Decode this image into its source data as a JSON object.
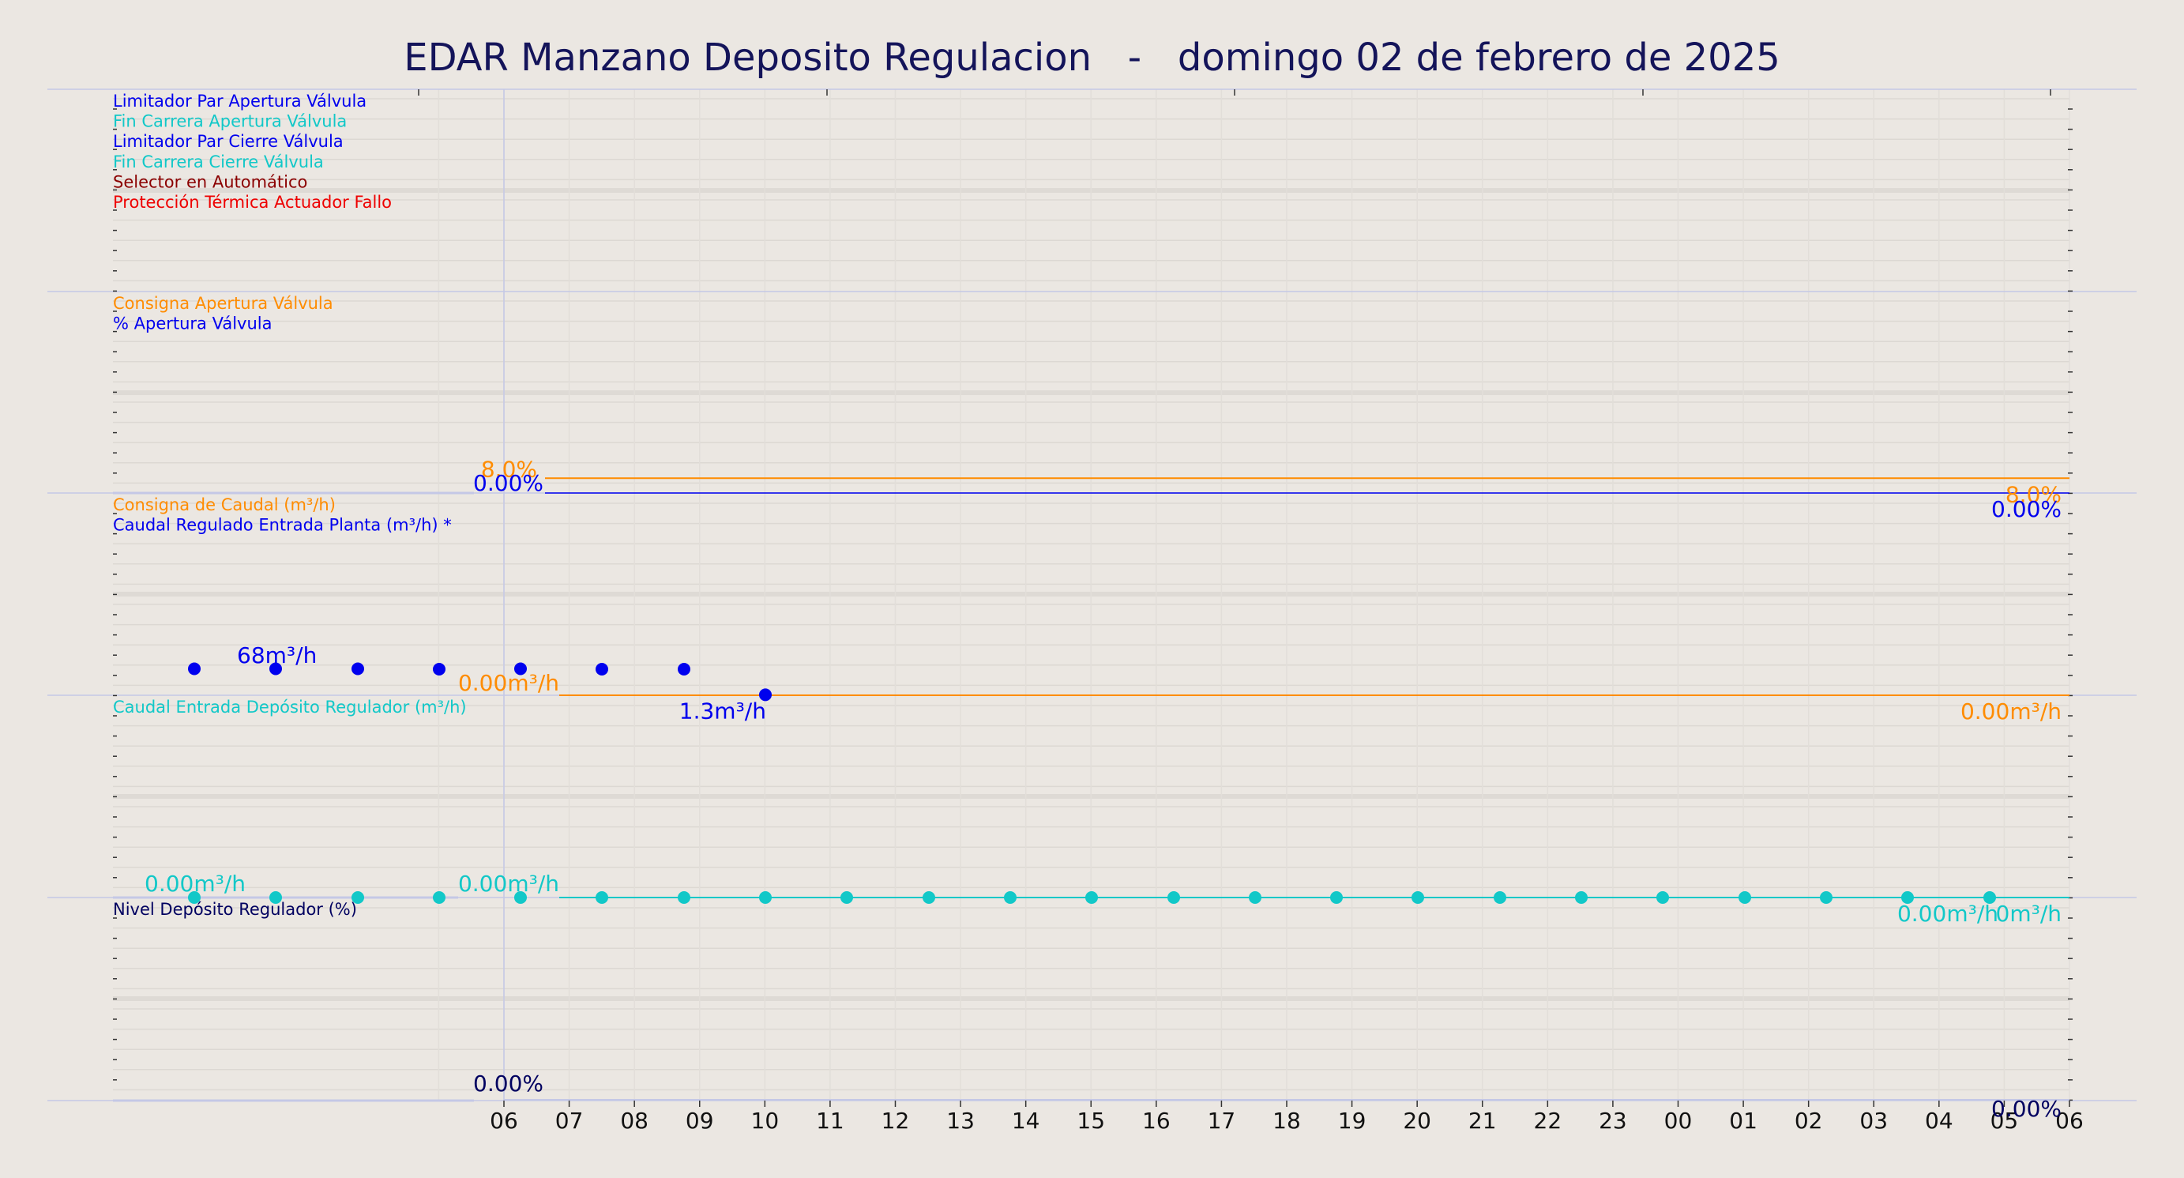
{
  "title": "EDAR Manzano Deposito Regulacion   -   domingo 02 de febrero de 2025",
  "colors": {
    "background": "#ebe7e2",
    "title": "#14145a",
    "blue": "#0000ee",
    "cyan": "#12c8c8",
    "orange": "#ff8c00",
    "darkred": "#8b0000",
    "red": "#ee0000",
    "navy": "#000060"
  },
  "chart_data": {
    "type": "line",
    "x_axis": {
      "tick_labels": [
        "06",
        "07",
        "08",
        "09",
        "10",
        "11",
        "12",
        "13",
        "14",
        "15",
        "16",
        "17",
        "18",
        "19",
        "20",
        "21",
        "22",
        "23",
        "00",
        "01",
        "02",
        "03",
        "04",
        "05",
        "06"
      ],
      "note": "hours from 06:00 on 02/02/2025 to 06:00 next day"
    },
    "panels": [
      {
        "id": "signals",
        "legend": [
          {
            "label": "Limitador Par Apertura Válvula",
            "color": "#0000ee"
          },
          {
            "label": "Fin Carrera Apertura Válvula",
            "color": "#12c8c8"
          },
          {
            "label": "Limitador Par Cierre Válvula",
            "color": "#0000ee"
          },
          {
            "label": "Fin Carrera Cierre Válvula",
            "color": "#12c8c8"
          },
          {
            "label": "Selector en Automático",
            "color": "#8b0000"
          },
          {
            "label": "Protección Térmica Actuador Fallo",
            "color": "#ee0000"
          }
        ],
        "series": []
      },
      {
        "id": "valve",
        "legend": [
          {
            "label": "Consigna Apertura Válvula",
            "color": "#ff8c00"
          },
          {
            "label": "% Apertura Válvula",
            "color": "#0000ee"
          }
        ],
        "series": [
          {
            "name": "Consigna Apertura Válvula",
            "color": "#ff8c00",
            "values": [
              8.0,
              8.0
            ],
            "labels": [
              "8.0%",
              "8.0%"
            ]
          },
          {
            "name": "% Apertura Válvula",
            "color": "#0000ee",
            "values": [
              0.0,
              0.0
            ],
            "labels": [
              "0.00%",
              "0.00%"
            ]
          }
        ]
      },
      {
        "id": "flow",
        "legend": [
          {
            "label": "Consigna de Caudal (m³/h)",
            "color": "#ff8c00"
          },
          {
            "label": "Caudal Regulado Entrada Planta (m³/h) *",
            "color": "#0000ee"
          }
        ],
        "series": [
          {
            "name": "Consigna de Caudal (m³/h)",
            "color": "#ff8c00",
            "values": [
              0.0,
              0.0
            ],
            "labels": [
              "0.00m³/h",
              "0.00m³/h"
            ]
          },
          {
            "name": "Caudal Regulado Entrada Planta (m³/h) *",
            "color": "#0000ee",
            "x": [
              3.75,
              5.0,
              6.25,
              7.5,
              8.75,
              10.0
            ],
            "values": [
              69,
              69,
              68,
              69,
              68,
              1.3
            ],
            "labels": [
              "68m³/h",
              "1.3m³/h"
            ]
          }
        ]
      },
      {
        "id": "deposit_flow",
        "legend": [
          {
            "label": "Caudal Entrada Depósito Regulador (m³/h)",
            "color": "#12c8c8"
          }
        ],
        "series": [
          {
            "name": "Caudal Entrada Depósito Regulador (m³/h)",
            "color": "#12c8c8",
            "x": [
              3.75,
              5.0,
              6.25,
              7.5,
              8.75,
              10.0,
              11.25,
              12.5,
              13.75,
              15.0,
              16.25,
              17.5,
              18.75,
              20.0,
              21.25,
              22.5,
              23.75,
              25.0,
              26.25,
              27.5,
              28.75,
              30.0
            ],
            "values": [
              0,
              0,
              0,
              0,
              0,
              0,
              0,
              0,
              0,
              0,
              0,
              0,
              0,
              0,
              0,
              0,
              0,
              0,
              0,
              0,
              0,
              0
            ],
            "labels": [
              "0.00m³/h",
              "0.00m³/h",
              "0.00m³/h",
              "0m³/h"
            ]
          }
        ]
      },
      {
        "id": "level",
        "legend": [
          {
            "label": "Nivel Depósito Regulador (%)",
            "color": "#000060"
          }
        ],
        "series": [
          {
            "name": "Nivel Depósito Regulador (%)",
            "color": "#000060",
            "values": [
              0.0,
              0.0
            ],
            "labels": [
              "0.00%",
              "0.00%"
            ]
          }
        ]
      }
    ]
  }
}
